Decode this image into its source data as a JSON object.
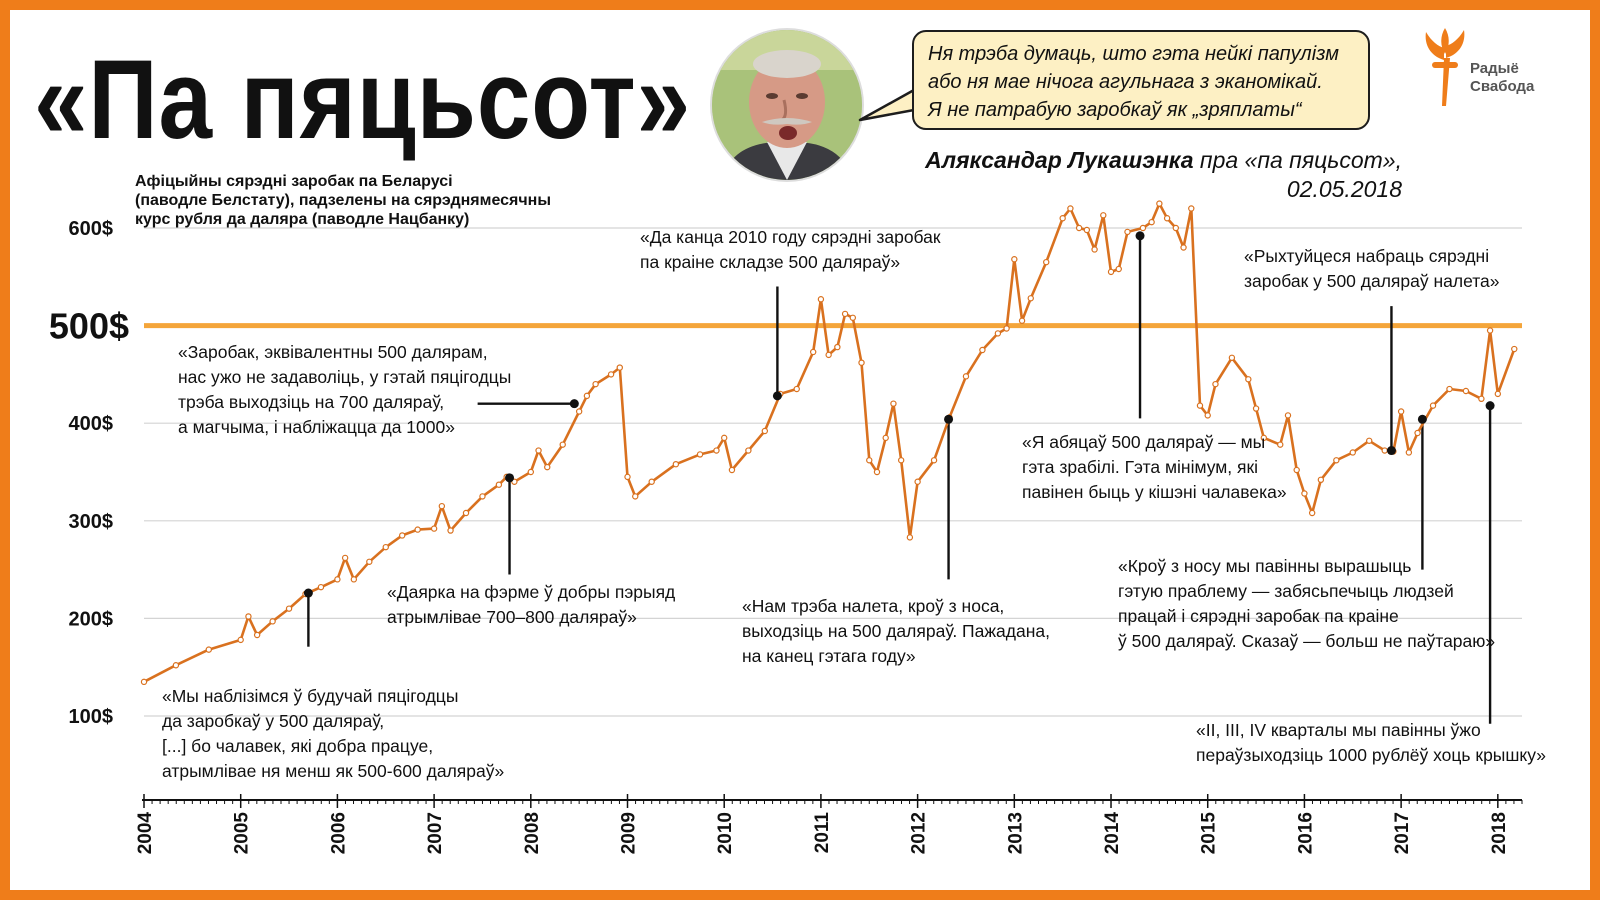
{
  "header": {
    "title": "«Па пяцьсот»",
    "subtitle_lines": [
      "Афіцыйны сярэдні заробак па Беларусі",
      "(паводле Белстату), падзелены на сярэднямесячны",
      "курс рубля да даляра (паводле Нацбанку)"
    ],
    "quote_lines": [
      "Ня трэба думаць, што гэта нейкі папулізм",
      "або ня мае нічога агульнага з эканомікай.",
      "Я не патрабую заробкаў як „зряплаты“"
    ],
    "attribution_name": "Аляксандар Лукашэнка",
    "attribution_rest": " пра «па пяцьсот»,",
    "attribution_date": "02.05.2018",
    "logo_lines": [
      "Радыё",
      "Свабода"
    ]
  },
  "colors": {
    "line": "#d9711f",
    "reference": "#f4a53a",
    "frame": "#ef7d1a",
    "bubble": "#fdf0c4"
  },
  "chart_data": {
    "type": "line",
    "xlabel": "",
    "ylabel": "",
    "ylim": [
      65,
      680
    ],
    "xlim": [
      2004.0,
      2018.25
    ],
    "y_ticks": [
      {
        "value": 100,
        "label": "100$"
      },
      {
        "value": 200,
        "label": "200$"
      },
      {
        "value": 300,
        "label": "300$"
      },
      {
        "value": 400,
        "label": "400$"
      },
      {
        "value": 500,
        "label": "500$",
        "emphasis": true
      },
      {
        "value": 600,
        "label": "600$"
      }
    ],
    "x_ticks": [
      "2004",
      "2005",
      "2006",
      "2007",
      "2008",
      "2009",
      "2010",
      "2011",
      "2012",
      "2013",
      "2014",
      "2015",
      "2016",
      "2017",
      "2018"
    ],
    "reference_line": 500,
    "grid": "horizontal",
    "series": [
      {
        "points": [
          [
            2004.0,
            135
          ],
          [
            2004.33,
            152
          ],
          [
            2004.67,
            168
          ],
          [
            2005.0,
            178
          ],
          [
            2005.08,
            202
          ],
          [
            2005.17,
            183
          ],
          [
            2005.33,
            197
          ],
          [
            2005.5,
            210
          ],
          [
            2005.67,
            225
          ],
          [
            2005.83,
            232
          ],
          [
            2006.0,
            240
          ],
          [
            2006.08,
            262
          ],
          [
            2006.17,
            240
          ],
          [
            2006.33,
            258
          ],
          [
            2006.5,
            273
          ],
          [
            2006.67,
            285
          ],
          [
            2006.83,
            291
          ],
          [
            2007.0,
            292
          ],
          [
            2007.08,
            315
          ],
          [
            2007.17,
            290
          ],
          [
            2007.33,
            308
          ],
          [
            2007.5,
            325
          ],
          [
            2007.67,
            337
          ],
          [
            2007.75,
            345
          ],
          [
            2007.83,
            340
          ],
          [
            2008.0,
            350
          ],
          [
            2008.08,
            372
          ],
          [
            2008.17,
            355
          ],
          [
            2008.33,
            378
          ],
          [
            2008.5,
            412
          ],
          [
            2008.58,
            428
          ],
          [
            2008.67,
            440
          ],
          [
            2008.83,
            450
          ],
          [
            2008.92,
            457
          ],
          [
            2009.0,
            345
          ],
          [
            2009.08,
            325
          ],
          [
            2009.25,
            340
          ],
          [
            2009.5,
            358
          ],
          [
            2009.75,
            368
          ],
          [
            2009.92,
            372
          ],
          [
            2010.0,
            385
          ],
          [
            2010.08,
            352
          ],
          [
            2010.25,
            372
          ],
          [
            2010.42,
            392
          ],
          [
            2010.58,
            430
          ],
          [
            2010.75,
            435
          ],
          [
            2010.92,
            473
          ],
          [
            2011.0,
            527
          ],
          [
            2011.08,
            470
          ],
          [
            2011.17,
            478
          ],
          [
            2011.25,
            512
          ],
          [
            2011.33,
            508
          ],
          [
            2011.42,
            462
          ],
          [
            2011.5,
            362
          ],
          [
            2011.58,
            350
          ],
          [
            2011.67,
            385
          ],
          [
            2011.75,
            420
          ],
          [
            2011.83,
            362
          ],
          [
            2011.92,
            283
          ],
          [
            2012.0,
            340
          ],
          [
            2012.17,
            362
          ],
          [
            2012.33,
            406
          ],
          [
            2012.5,
            448
          ],
          [
            2012.67,
            475
          ],
          [
            2012.83,
            492
          ],
          [
            2012.92,
            497
          ],
          [
            2013.0,
            568
          ],
          [
            2013.08,
            505
          ],
          [
            2013.17,
            528
          ],
          [
            2013.33,
            565
          ],
          [
            2013.5,
            610
          ],
          [
            2013.58,
            620
          ],
          [
            2013.67,
            600
          ],
          [
            2013.75,
            598
          ],
          [
            2013.83,
            578
          ],
          [
            2013.92,
            613
          ],
          [
            2014.0,
            555
          ],
          [
            2014.08,
            558
          ],
          [
            2014.17,
            596
          ],
          [
            2014.33,
            600
          ],
          [
            2014.42,
            606
          ],
          [
            2014.5,
            625
          ],
          [
            2014.58,
            610
          ],
          [
            2014.67,
            600
          ],
          [
            2014.75,
            580
          ],
          [
            2014.83,
            620
          ],
          [
            2014.92,
            418
          ],
          [
            2015.0,
            408
          ],
          [
            2015.08,
            440
          ],
          [
            2015.25,
            467
          ],
          [
            2015.42,
            445
          ],
          [
            2015.5,
            415
          ],
          [
            2015.58,
            385
          ],
          [
            2015.75,
            378
          ],
          [
            2015.83,
            408
          ],
          [
            2015.92,
            352
          ],
          [
            2016.0,
            328
          ],
          [
            2016.08,
            308
          ],
          [
            2016.17,
            342
          ],
          [
            2016.33,
            362
          ],
          [
            2016.5,
            370
          ],
          [
            2016.67,
            382
          ],
          [
            2016.83,
            372
          ],
          [
            2016.92,
            371
          ],
          [
            2017.0,
            412
          ],
          [
            2017.08,
            370
          ],
          [
            2017.17,
            390
          ],
          [
            2017.33,
            418
          ],
          [
            2017.5,
            435
          ],
          [
            2017.67,
            433
          ],
          [
            2017.83,
            425
          ],
          [
            2017.92,
            495
          ],
          [
            2018.0,
            430
          ],
          [
            2018.17,
            476
          ]
        ]
      }
    ],
    "annotations": [
      {
        "id": "a2005",
        "x": 2005.7,
        "y": 226,
        "label_x": 2005.7,
        "label_y": 171,
        "lines": [
          "«Мы наблізімся ў будучай пяцігодцы",
          "да заробкаў у 500 даляраў,",
          "[...] бо чалавек, які добра працуе,",
          "атрымлівае ня менш як 500-600 даляраў»"
        ]
      },
      {
        "id": "a2007",
        "x": 2007.78,
        "y": 344,
        "label_x": 2007.78,
        "label_y": 245,
        "lines": [
          "«Даярка на фэрме ў добры пэрыяд",
          "атрымлівае 700–800 даляраў»"
        ]
      },
      {
        "id": "a2008",
        "x": 2008.45,
        "y": 420,
        "label_x": 2007.45,
        "label_y": 420,
        "lines": [
          "«Заробак, эквівалентны 500 далярам,",
          "нас ужо не задаволіць, у гэтай пяцігодцы",
          "трэба выходзіць на 700 даляраў,",
          "а магчыма, і набліжацца да 1000»"
        ]
      },
      {
        "id": "a2010",
        "x": 2010.55,
        "y": 428,
        "label_x": 2010.55,
        "label_y": 540,
        "lines": [
          "«Да канца 2010 году сярэдні заробак",
          "па краіне складзе 500 даляраў»"
        ]
      },
      {
        "id": "a2012",
        "x": 2012.32,
        "y": 404,
        "label_x": 2012.32,
        "label_y": 240,
        "lines": [
          "«Нам трэба налета, кроў з носа,",
          "выходзіць на 500 даляраў. Пажадана,",
          "на канец гэтага году»"
        ]
      },
      {
        "id": "a2014",
        "x": 2014.3,
        "y": 592,
        "label_x": 2014.3,
        "label_y": 405,
        "lines": [
          "«Я абяцаў 500 даляраў — мы",
          "гэта зрабілі. Гэта мінімум, які",
          "павінен быць у кішэні чалавека»"
        ]
      },
      {
        "id": "a2016",
        "x": 2016.9,
        "y": 372,
        "label_x": 2016.9,
        "label_y": 520,
        "lines": [
          "«Рыхтуйцеся набраць сярэдні",
          "заробак у 500 даляраў налета»"
        ]
      },
      {
        "id": "a2017",
        "x": 2017.22,
        "y": 404,
        "label_x": 2017.22,
        "label_y": 250,
        "lines": [
          "«Кроў з носу мы павінны вырашыць",
          "гэтую праблему — забясьпечыць людзей",
          "працай і сярэдні заробак па краіне",
          "ў 500 даляраў. Сказаў — больш не паўтараю»"
        ]
      },
      {
        "id": "a2018",
        "x": 2017.92,
        "y": 418,
        "label_x": 2017.92,
        "label_y": 92,
        "lines": [
          "«II, III, IV кварталы мы павінны ўжо",
          "пераўзыходзіць 1000 рублёў хоць крышку»"
        ]
      }
    ]
  }
}
